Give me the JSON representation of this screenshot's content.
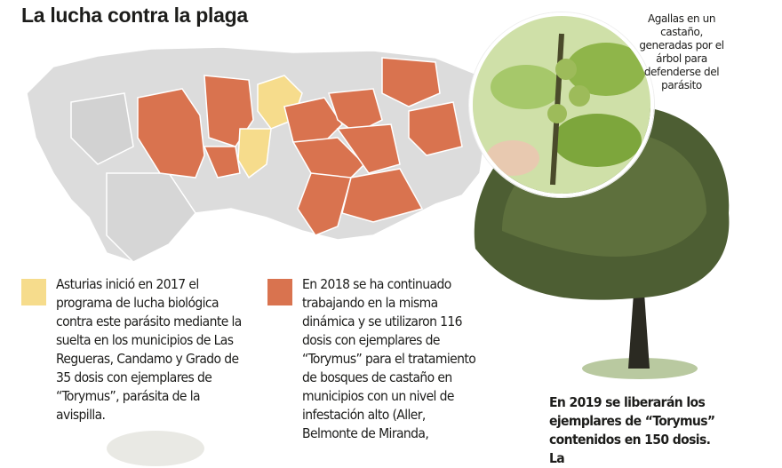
{
  "title": "La lucha contra la plaga",
  "colors": {
    "yellow": "#f6dc8c",
    "orange": "#d9734f",
    "gray": "#dcdcdc"
  },
  "legend": [
    {
      "color": "#f6dc8c",
      "text": "Asturias inició en 2017 el programa de lucha biológica contra este parásito mediante la suelta en los municipios de Las Regueras, Candamo y Grado de 35 dosis con ejemplares de “Torymus”, parásita de la avispilla."
    },
    {
      "color": "#d9734f",
      "text": "En 2018 se ha continuado trabajando en la misma dinámica y se utilizaron 116 dosis con ejemplares de “Torymus” para el tratamiento de bosques de castaño en municipios con un nivel de infestación alto (Aller, Belmonte de Miranda,"
    }
  ],
  "photo_caption": "Agallas en un castaño, generadas por el árbol para defenderse del parásito",
  "footer_text": "En 2019 se liberarán los ejemplares de “Torymus” contenidos en 150 dosis. La"
}
